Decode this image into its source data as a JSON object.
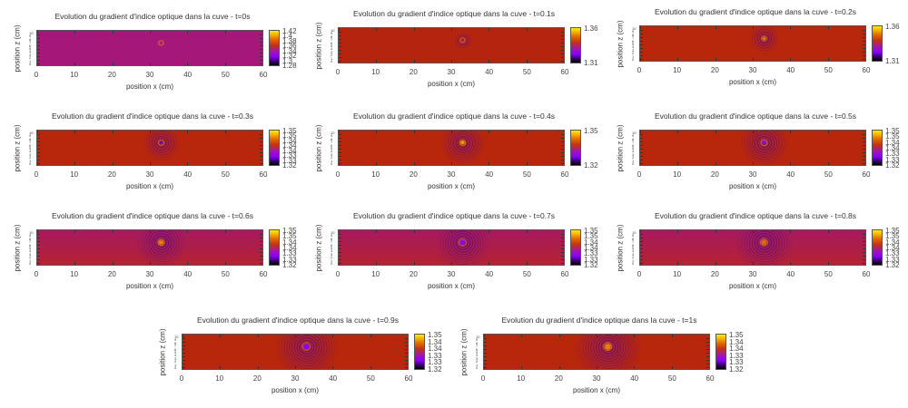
{
  "chart_data": [
    {
      "type": "heatmap",
      "title": "Evolution du gradient d'indice optique dans la cuve - t=0s",
      "time": "t=0s",
      "xlabel": "position x (cm)",
      "ylabel": "position z (cm)",
      "xlim": [
        0,
        60
      ],
      "x_ticks": [
        "0",
        "10",
        "20",
        "30",
        "40",
        "50",
        "60"
      ],
      "colorbar_ticks": [
        "1.42",
        "1.4",
        "1.38",
        "1.36",
        "1.34",
        "1.32",
        "1.3",
        "1.28"
      ],
      "colorbar_range": [
        1.28,
        1.42
      ],
      "source_x": 33,
      "ring_extent_cm": 0.4,
      "background": "#a5187a",
      "center_color": "#a5187a"
    },
    {
      "type": "heatmap",
      "title": "Evolution du gradient d'indice optique dans la cuve - t=0.1s",
      "time": "t=0.1s",
      "xlabel": "position x (cm)",
      "ylabel": "position z (cm)",
      "xlim": [
        0,
        60
      ],
      "x_ticks": [
        "0",
        "10",
        "20",
        "30",
        "40",
        "50",
        "60"
      ],
      "colorbar_ticks": [
        "1.36",
        "1.31"
      ],
      "colorbar_range": [
        1.31,
        1.36
      ],
      "source_x": 33,
      "ring_extent_cm": 2.5,
      "background": "#b5240e",
      "center_color": "#b5240e"
    },
    {
      "type": "heatmap",
      "title": "Evolution du gradient d'indice optique dans la cuve - t=0.2s",
      "time": "t=0.2s",
      "xlabel": "position x (cm)",
      "ylabel": "position z (cm)",
      "xlim": [
        0,
        60
      ],
      "x_ticks": [
        "0",
        "10",
        "20",
        "30",
        "40",
        "50",
        "60"
      ],
      "colorbar_ticks": [
        "1.36",
        "1.31"
      ],
      "colorbar_range": [
        1.31,
        1.36
      ],
      "source_x": 33,
      "ring_extent_cm": 4,
      "background": "#b8260c",
      "center_color": "#f0a000"
    },
    {
      "type": "heatmap",
      "title": "Evolution du gradient d'indice optique dans la cuve - t=0.3s",
      "time": "t=0.3s",
      "xlabel": "position x (cm)",
      "ylabel": "position z (cm)",
      "xlim": [
        0,
        60
      ],
      "x_ticks": [
        "0",
        "10",
        "20",
        "30",
        "40",
        "50",
        "60"
      ],
      "colorbar_ticks": [
        "1.35",
        "1.35",
        "1.34",
        "1.34",
        "1.34",
        "1.33",
        "1.33",
        "1.32"
      ],
      "colorbar_range": [
        1.32,
        1.35
      ],
      "source_x": 33,
      "ring_extent_cm": 5,
      "background": "#b8260c",
      "center_color": "#7000c0"
    },
    {
      "type": "heatmap",
      "title": "Evolution du gradient d'indice optique dans la cuve - t=0.4s",
      "time": "t=0.4s",
      "xlabel": "position x (cm)",
      "ylabel": "position z (cm)",
      "xlim": [
        0,
        60
      ],
      "x_ticks": [
        "0",
        "10",
        "20",
        "30",
        "40",
        "50",
        "60"
      ],
      "colorbar_ticks": [
        "1.35",
        "1.32"
      ],
      "colorbar_range": [
        1.32,
        1.35
      ],
      "source_x": 33,
      "ring_extent_cm": 6,
      "background": "#b8260c",
      "center_color": "#f5a000"
    },
    {
      "type": "heatmap",
      "title": "Evolution du gradient d'indice optique dans la cuve - t=0.5s",
      "time": "t=0.5s",
      "xlabel": "position x (cm)",
      "ylabel": "position z (cm)",
      "xlim": [
        0,
        60
      ],
      "x_ticks": [
        "0",
        "10",
        "20",
        "30",
        "40",
        "50",
        "60"
      ],
      "colorbar_ticks": [
        "1.35",
        "1.35",
        "1.34",
        "1.34",
        "1.33",
        "1.33",
        "1.32"
      ],
      "colorbar_range": [
        1.32,
        1.35
      ],
      "source_x": 33,
      "ring_extent_cm": 6.5,
      "background": "#b8260c",
      "center_color": "#8a00ff"
    },
    {
      "type": "heatmap",
      "title": "Evolution du gradient d'indice optique dans la cuve - t=0.6s",
      "time": "t=0.6s",
      "xlabel": "position x (cm)",
      "ylabel": "position z (cm)",
      "xlim": [
        0,
        60
      ],
      "x_ticks": [
        "0",
        "10",
        "20",
        "30",
        "40",
        "50",
        "60"
      ],
      "colorbar_ticks": [
        "1.35",
        "1.35",
        "1.34",
        "1.34",
        "1.33",
        "1.33",
        "1.32"
      ],
      "colorbar_range": [
        1.32,
        1.35
      ],
      "source_x": 33,
      "ring_extent_cm": 7,
      "background": "#a81a5e",
      "center_color": "#f08000"
    },
    {
      "type": "heatmap",
      "title": "Evolution du gradient d'indice optique dans la cuve - t=0.7s",
      "time": "t=0.7s",
      "xlabel": "position x (cm)",
      "ylabel": "position z (cm)",
      "xlim": [
        0,
        60
      ],
      "x_ticks": [
        "0",
        "10",
        "20",
        "30",
        "40",
        "50",
        "60"
      ],
      "colorbar_ticks": [
        "1.35",
        "1.35",
        "1.34",
        "1.34",
        "1.33",
        "1.33",
        "1.32"
      ],
      "colorbar_range": [
        1.32,
        1.35
      ],
      "source_x": 33,
      "ring_extent_cm": 7.5,
      "background": "#a81a5e",
      "center_color": "#8a00ff"
    },
    {
      "type": "heatmap",
      "title": "Evolution du gradient d'indice optique dans la cuve - t=0.8s",
      "time": "t=0.8s",
      "xlabel": "position x (cm)",
      "ylabel": "position z (cm)",
      "xlim": [
        0,
        60
      ],
      "x_ticks": [
        "0",
        "10",
        "20",
        "30",
        "40",
        "50",
        "60"
      ],
      "colorbar_ticks": [
        "1.35",
        "1.35",
        "1.34",
        "1.34",
        "1.33",
        "1.33",
        "1.32"
      ],
      "colorbar_range": [
        1.32,
        1.35
      ],
      "source_x": 33,
      "ring_extent_cm": 8,
      "background": "#a81a5e",
      "center_color": "#e06a00"
    },
    {
      "type": "heatmap",
      "title": "Evolution du gradient d'indice optique dans la cuve - t=0.9s",
      "time": "t=0.9s",
      "xlabel": "position x (cm)",
      "ylabel": "position z (cm)",
      "xlim": [
        0,
        60
      ],
      "x_ticks": [
        "0",
        "10",
        "20",
        "30",
        "40",
        "50",
        "60"
      ],
      "colorbar_ticks": [
        "1.35",
        "1.34",
        "1.34",
        "1.33",
        "1.33",
        "1.32"
      ],
      "colorbar_range": [
        1.32,
        1.35
      ],
      "source_x": 33,
      "ring_extent_cm": 8.5,
      "background": "#b8260c",
      "center_color": "#8a00ff"
    },
    {
      "type": "heatmap",
      "title": "Evolution du gradient d'indice optique dans la cuve - t=1s",
      "time": "t=1s",
      "xlabel": "position x (cm)",
      "ylabel": "position z (cm)",
      "xlim": [
        0,
        60
      ],
      "x_ticks": [
        "0",
        "10",
        "20",
        "30",
        "40",
        "50",
        "60"
      ],
      "colorbar_ticks": [
        "1.35",
        "1.34",
        "1.34",
        "1.33",
        "1.33",
        "1.32"
      ],
      "colorbar_range": [
        1.32,
        1.35
      ],
      "source_x": 33,
      "ring_extent_cm": 9,
      "background": "#b8260c",
      "center_color": "#f08000"
    }
  ],
  "y_tick_labels_overlapping": "0 1 2 3 4 5 6 7 8 9 10"
}
